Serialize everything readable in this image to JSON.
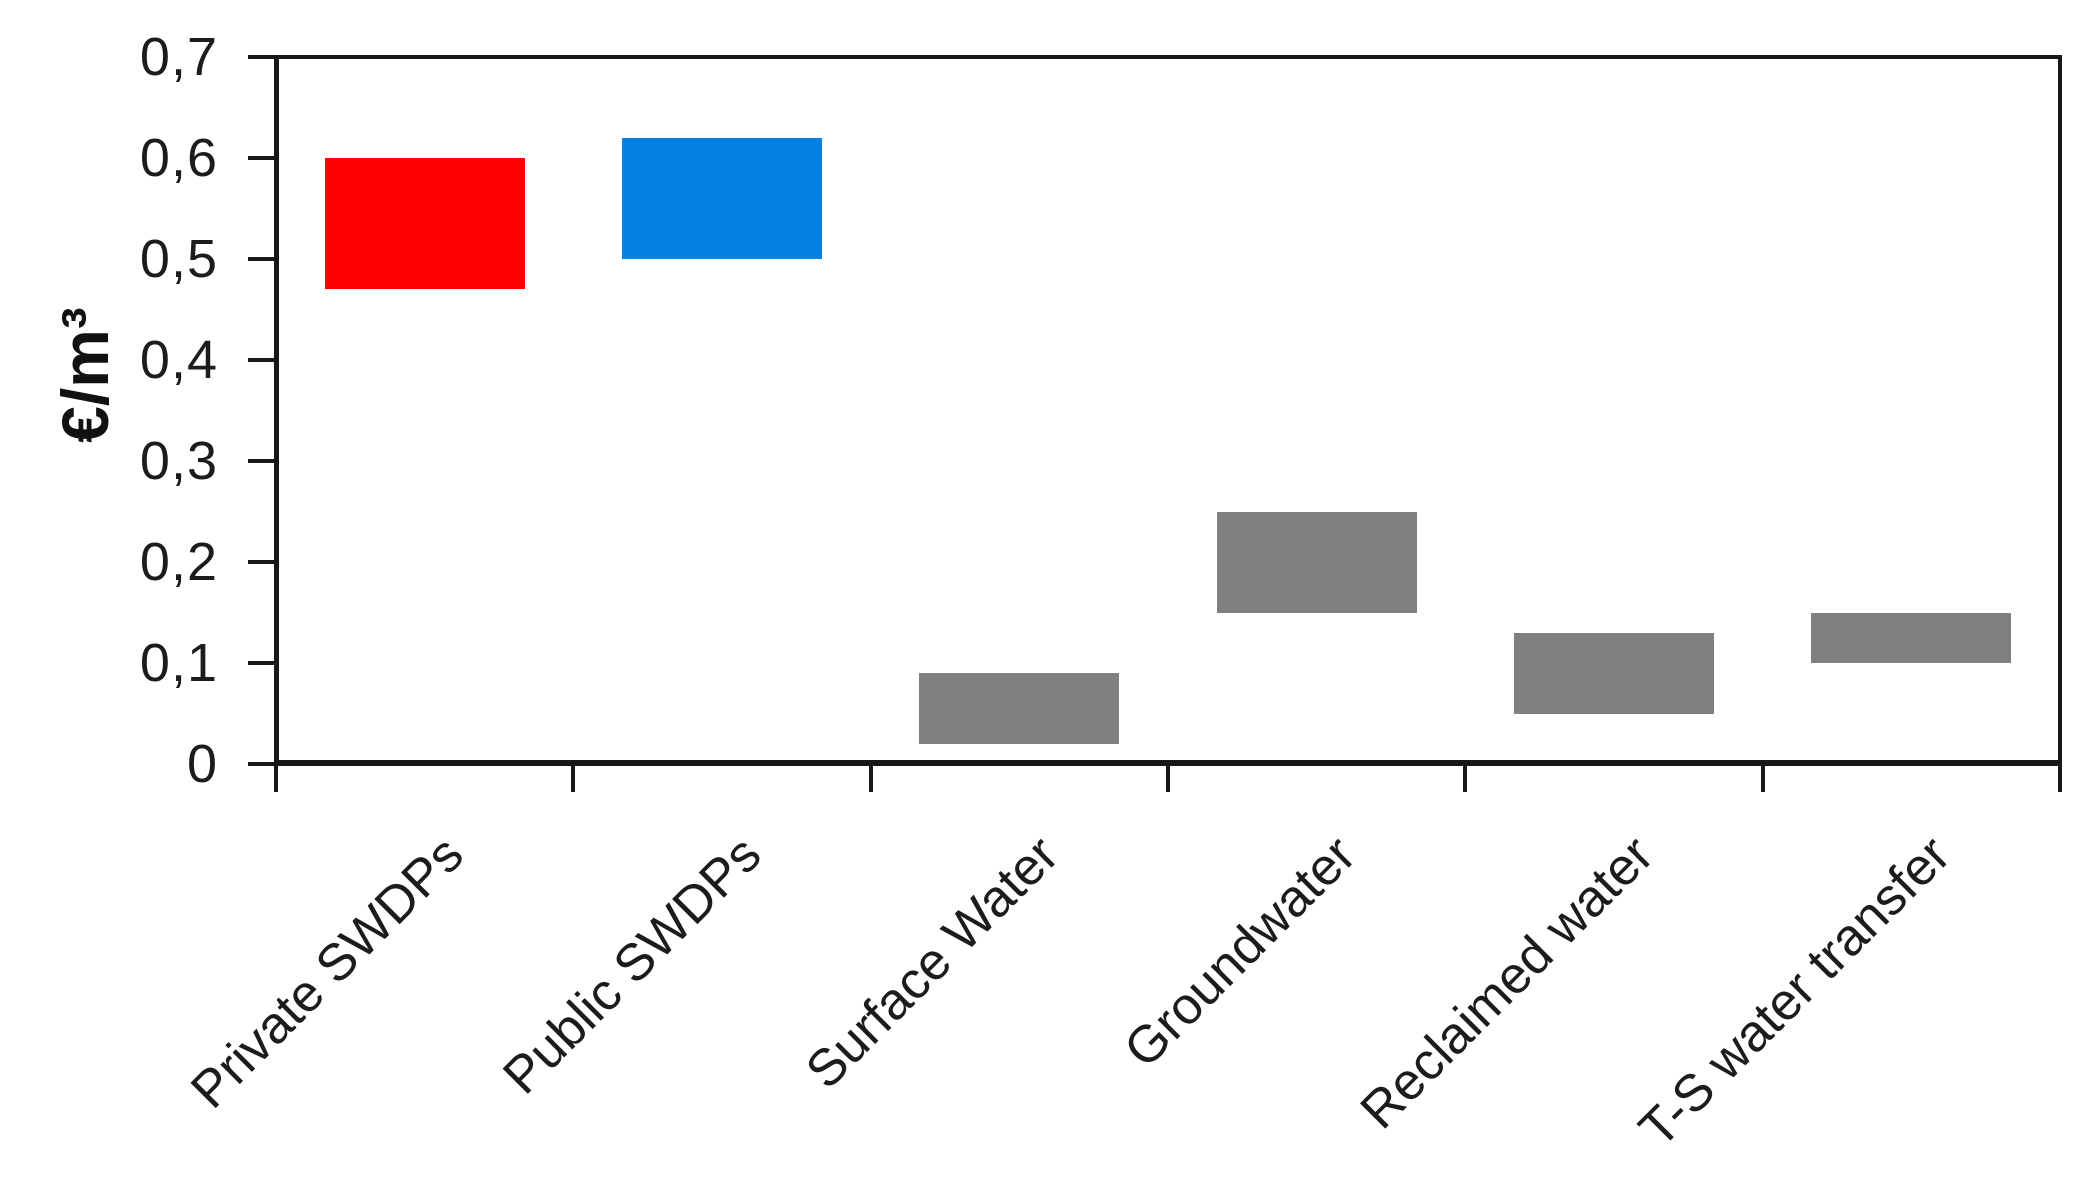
{
  "chart_data": {
    "type": "bar",
    "subtype": "floating-range-bars",
    "title": "",
    "xlabel": "",
    "ylabel": "€/m³",
    "ylim": [
      0,
      0.7
    ],
    "ytick_step": 0.1,
    "decimal_separator": ",",
    "grid": false,
    "legend": false,
    "background_color": "#ffffff",
    "axis_color": "#181818",
    "text_color": "#1c1c1c",
    "yticks": [
      {
        "value": 0.0,
        "label": "0"
      },
      {
        "value": 0.1,
        "label": "0,1"
      },
      {
        "value": 0.2,
        "label": "0,2"
      },
      {
        "value": 0.3,
        "label": "0,3"
      },
      {
        "value": 0.4,
        "label": "0,4"
      },
      {
        "value": 0.5,
        "label": "0,5"
      },
      {
        "value": 0.6,
        "label": "0,6"
      },
      {
        "value": 0.7,
        "label": "0,7"
      }
    ],
    "categories": [
      "Private SWDPs",
      "Public SWDPs",
      "Surface Water",
      "Groundwater",
      "Reclaimed water",
      "T-S water transfer"
    ],
    "bars": [
      {
        "label": "Private SWDPs",
        "low": 0.47,
        "high": 0.6,
        "color": "#fe0000"
      },
      {
        "label": "Public SWDPs",
        "low": 0.5,
        "high": 0.62,
        "color": "#0581e3"
      },
      {
        "label": "Surface Water",
        "low": 0.02,
        "high": 0.09,
        "color": "#808080"
      },
      {
        "label": "Groundwater",
        "low": 0.15,
        "high": 0.25,
        "color": "#808080"
      },
      {
        "label": "Reclaimed water",
        "low": 0.05,
        "high": 0.13,
        "color": "#808080"
      },
      {
        "label": "T-S water transfer",
        "low": 0.1,
        "high": 0.15,
        "color": "#808080"
      }
    ]
  }
}
